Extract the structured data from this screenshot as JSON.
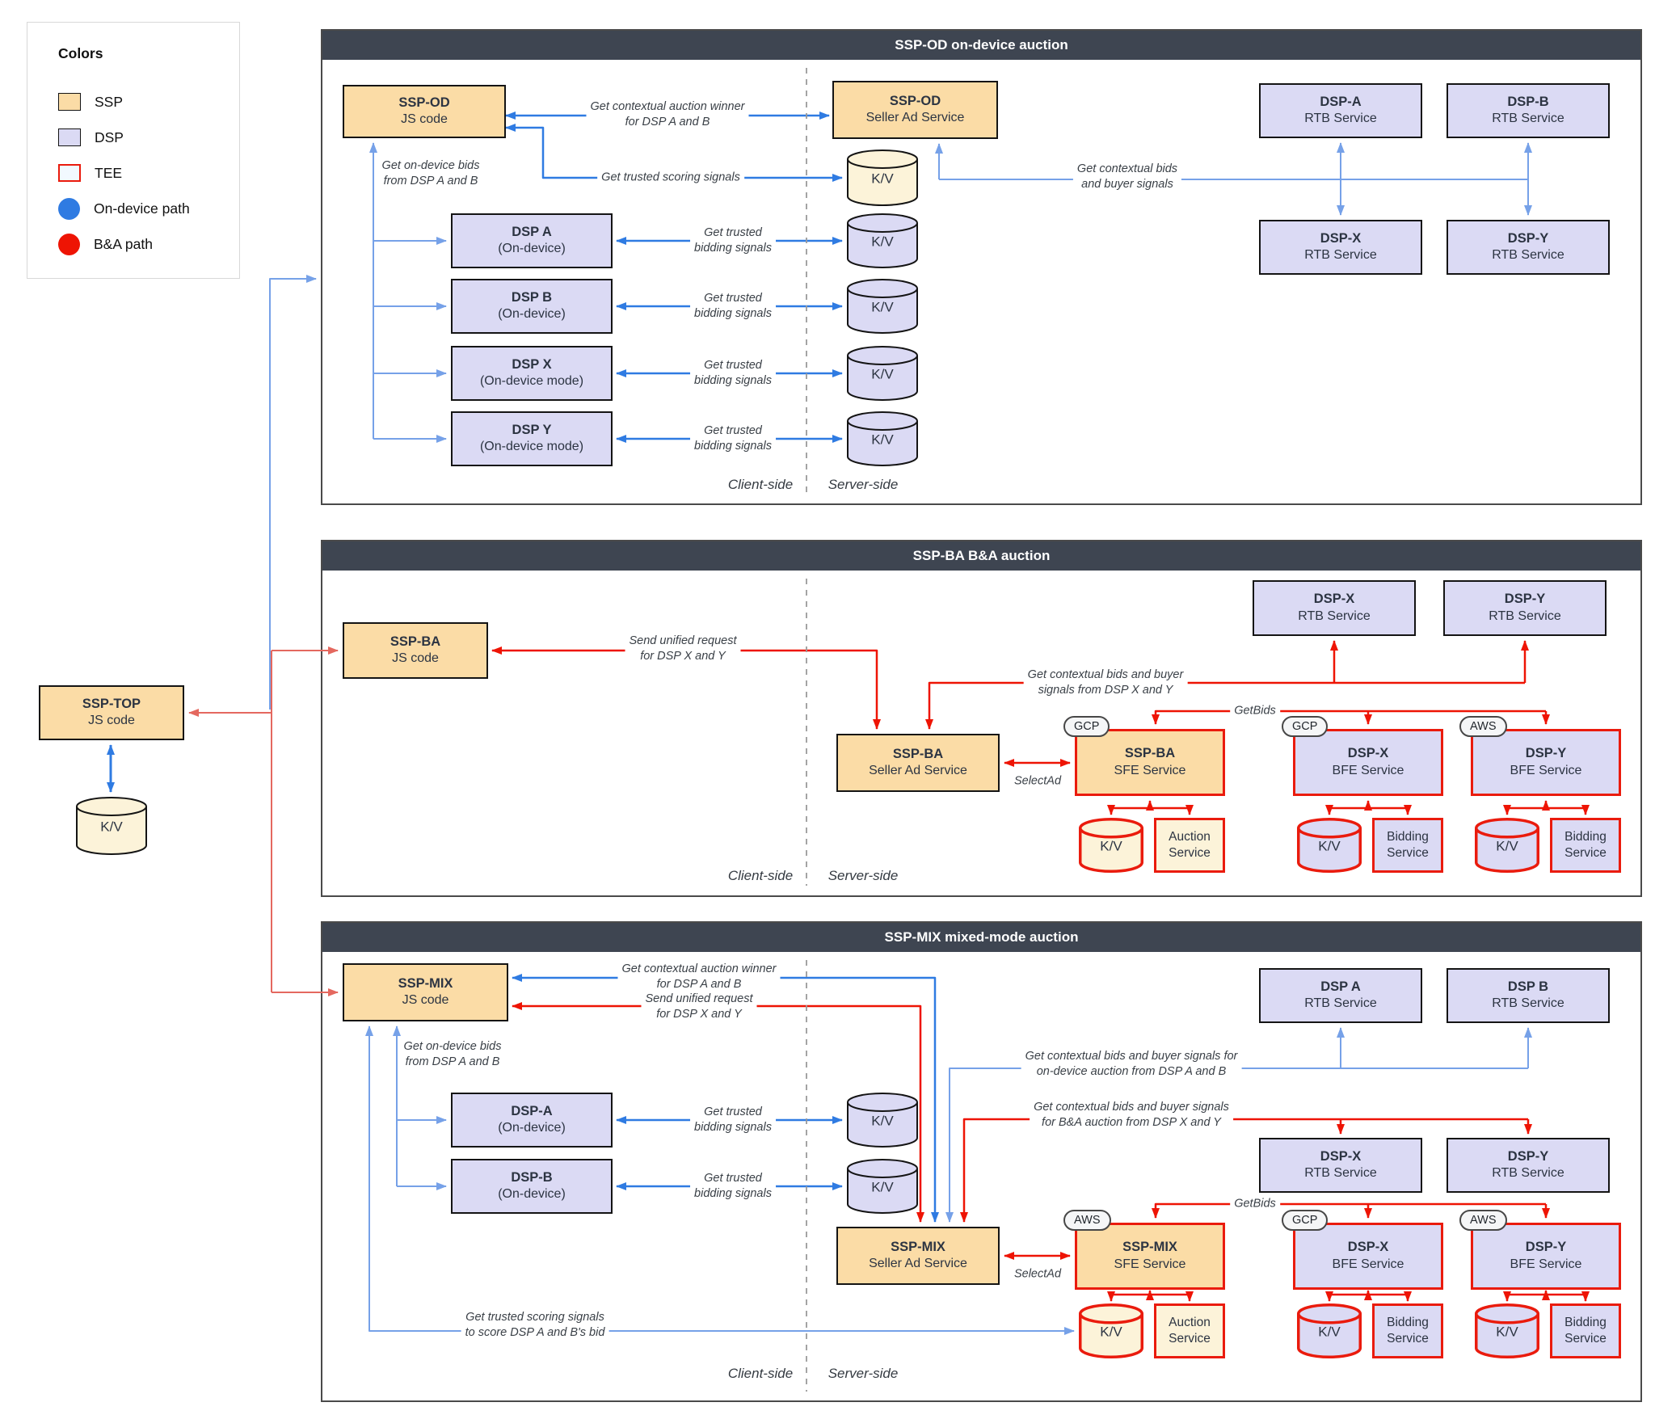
{
  "legend": {
    "title": "Colors",
    "items": [
      {
        "label": "SSP",
        "swatch": "ssp"
      },
      {
        "label": "DSP",
        "swatch": "dsp"
      },
      {
        "label": "TEE",
        "swatch": "tee"
      },
      {
        "label": "On-device path",
        "swatch": "blue-dot"
      },
      {
        "label": "B&A path",
        "swatch": "red-dot"
      }
    ]
  },
  "colors": {
    "ssp_fill": "#FBDCA6",
    "ssp_cream_fill": "#FCF3D9",
    "dsp_fill": "#DBDAF4",
    "tee_red": "#EA1B0D",
    "on_device_blue": "#2F7BE2",
    "on_device_blue_light": "#76A1E8",
    "ba_red": "#EE1404",
    "ba_red_light": "#E4685F",
    "header_bg": "#3E4551"
  },
  "sections": [
    {
      "title": "SSP-OD on-device auction",
      "client_label": "Client-side",
      "server_label": "Server-side"
    },
    {
      "title": "SSP-BA B&A auction",
      "client_label": "Client-side",
      "server_label": "Server-side"
    },
    {
      "title": "SSP-MIX mixed-mode auction",
      "client_label": "Client-side",
      "server_label": "Server-side"
    }
  ],
  "nodes": [
    {
      "id": "ssp-top-js",
      "title": "SSP-TOP",
      "subtitle": "JS code"
    },
    {
      "id": "ssp-top-kv",
      "title": "K/V"
    },
    {
      "id": "ssp-od-js",
      "title": "SSP-OD",
      "subtitle": "JS code"
    },
    {
      "id": "ssp-od-seller-ad-service",
      "title": "SSP-OD",
      "subtitle": "Seller Ad Service"
    },
    {
      "id": "ssp-od-kv",
      "title": "K/V"
    },
    {
      "id": "dsp-a-on-device",
      "title": "DSP A",
      "subtitle": "(On-device)"
    },
    {
      "id": "dsp-b-on-device",
      "title": "DSP B",
      "subtitle": "(On-device)"
    },
    {
      "id": "dsp-x-on-device-mode",
      "title": "DSP X",
      "subtitle": "(On-device mode)"
    },
    {
      "id": "dsp-a-kv",
      "title": "K/V"
    },
    {
      "id": "dsp-y-on-device-mode",
      "title": "DSP Y",
      "subtitle": "(On-device mode)"
    },
    {
      "id": "dsp-b-kv",
      "title": "K/V"
    },
    {
      "id": "dsp-x-kv",
      "title": "K/V"
    },
    {
      "id": "dsp-y-kv",
      "title": "K/V"
    },
    {
      "id": "dsp-a-rtb-1",
      "title": "DSP-A",
      "subtitle": "RTB Service"
    },
    {
      "id": "dsp-b-rtb-1",
      "title": "DSP-B",
      "subtitle": "RTB Service"
    },
    {
      "id": "dsp-x-rtb-1",
      "title": "DSP-X",
      "subtitle": "RTB Service"
    },
    {
      "id": "dsp-y-rtb-1",
      "title": "DSP-Y",
      "subtitle": "RTB Service"
    },
    {
      "id": "ssp-ba-js",
      "title": "SSP-BA",
      "subtitle": "JS code"
    },
    {
      "id": "dsp-x-rtb-2",
      "title": "DSP-X",
      "subtitle": "RTB Service"
    },
    {
      "id": "dsp-y-rtb-2",
      "title": "DSP-Y",
      "subtitle": "RTB Service"
    },
    {
      "id": "ssp-ba-seller-ad-service",
      "title": "SSP-BA",
      "subtitle": "Seller Ad Service"
    },
    {
      "id": "ssp-ba-sfe",
      "title": "SSP-BA",
      "subtitle": "SFE Service",
      "badge": "GCP"
    },
    {
      "id": "dsp-x-bfe-2",
      "title": "DSP-X",
      "subtitle": "BFE Service",
      "badge": "GCP"
    },
    {
      "id": "dsp-y-bfe-2",
      "title": "DSP-Y",
      "subtitle": "BFE Service",
      "badge": "AWS"
    },
    {
      "id": "ssp-ba-sfe-kv",
      "title": "K/V"
    },
    {
      "id": "ssp-ba-auction-service",
      "title": "Auction",
      "subtitle": "Service"
    },
    {
      "id": "dsp-x-bfe-kv-2",
      "title": "K/V"
    },
    {
      "id": "dsp-x-bidding-service-2",
      "title": "Bidding",
      "subtitle": "Service"
    },
    {
      "id": "dsp-y-bfe-kv-2",
      "title": "K/V"
    },
    {
      "id": "dsp-y-bidding-service-2",
      "title": "Bidding",
      "subtitle": "Service"
    },
    {
      "id": "ssp-mix-js",
      "title": "SSP-MIX",
      "subtitle": "JS code"
    },
    {
      "id": "dsp-a-on-device-3",
      "title": "DSP-A",
      "subtitle": "(On-device)"
    },
    {
      "id": "dsp-b-on-device-3",
      "title": "DSP-B",
      "subtitle": "(On-device)"
    },
    {
      "id": "dsp-a-kv-3",
      "title": "K/V"
    },
    {
      "id": "dsp-b-kv-3",
      "title": "K/V"
    },
    {
      "id": "dsp-a-rtb-3",
      "title": "DSP A",
      "subtitle": "RTB Service"
    },
    {
      "id": "dsp-b-rtb-3",
      "title": "DSP B",
      "subtitle": "RTB Service"
    },
    {
      "id": "dsp-x-rtb-3",
      "title": "DSP-X",
      "subtitle": "RTB Service"
    },
    {
      "id": "dsp-y-rtb-3",
      "title": "DSP-Y",
      "subtitle": "RTB Service"
    },
    {
      "id": "ssp-mix-seller-ad-service",
      "title": "SSP-MIX",
      "subtitle": "Seller Ad Service"
    },
    {
      "id": "ssp-mix-sfe",
      "title": "SSP-MIX",
      "subtitle": "SFE Service",
      "badge": "AWS"
    },
    {
      "id": "dsp-x-bfe-3",
      "title": "DSP-X",
      "subtitle": "BFE Service",
      "badge": "GCP"
    },
    {
      "id": "dsp-y-bfe-3",
      "title": "DSP-Y",
      "subtitle": "BFE Service",
      "badge": "AWS"
    },
    {
      "id": "ssp-mix-sfe-kv",
      "title": "K/V"
    },
    {
      "id": "ssp-mix-auction-service",
      "title": "Auction",
      "subtitle": "Service"
    },
    {
      "id": "dsp-x-bfe-kv-3",
      "title": "K/V"
    },
    {
      "id": "dsp-x-bidding-service-3",
      "title": "Bidding",
      "subtitle": "Service"
    },
    {
      "id": "dsp-y-bfe-kv-3",
      "title": "K/V"
    },
    {
      "id": "dsp-y-bidding-service-3",
      "title": "Bidding",
      "subtitle": "Service"
    }
  ],
  "edge_labels": [
    {
      "id": "winner-1",
      "lines": [
        "Get contextual auction winner",
        "for DSP A and B"
      ]
    },
    {
      "id": "scoring-1",
      "lines": [
        "Get trusted scoring signals"
      ]
    },
    {
      "id": "od-bids-1",
      "lines": [
        "Get on-device bids",
        "from DSP A and B"
      ]
    },
    {
      "id": "bidding-1a",
      "lines": [
        "Get trusted",
        "bidding signals"
      ]
    },
    {
      "id": "bidding-1b",
      "lines": [
        "Get trusted",
        "bidding signals"
      ]
    },
    {
      "id": "bidding-1x",
      "lines": [
        "Get trusted",
        "bidding signals"
      ]
    },
    {
      "id": "bidding-1y",
      "lines": [
        "Get trusted",
        "bidding signals"
      ]
    },
    {
      "id": "contextual-1",
      "lines": [
        "Get contextual bids",
        "and buyer signals"
      ]
    },
    {
      "id": "unified-2",
      "lines": [
        "Send unified request",
        "for DSP X and Y"
      ]
    },
    {
      "id": "contextual-2",
      "lines": [
        "Get contextual bids and buyer",
        "signals from DSP X and Y"
      ]
    },
    {
      "id": "getbids-2",
      "lines": [
        "GetBids"
      ]
    },
    {
      "id": "selectad-2",
      "lines": [
        "SelectAd"
      ]
    },
    {
      "id": "winner-3",
      "lines": [
        "Get contextual auction winner",
        "for DSP A and B"
      ]
    },
    {
      "id": "unified-3",
      "lines": [
        "Send unified request",
        "for DSP X and Y"
      ]
    },
    {
      "id": "od-bids-3",
      "lines": [
        "Get on-device bids",
        "from DSP A and B"
      ]
    },
    {
      "id": "bidding-3a",
      "lines": [
        "Get trusted",
        "bidding signals"
      ]
    },
    {
      "id": "bidding-3b",
      "lines": [
        "Get trusted",
        "bidding signals"
      ]
    },
    {
      "id": "contextual-od-3",
      "lines": [
        "Get contextual bids and buyer signals for",
        "on-device auction from DSP A and B"
      ]
    },
    {
      "id": "contextual-ba-3",
      "lines": [
        "Get contextual bids and buyer signals",
        "for B&A auction from DSP X and Y"
      ]
    },
    {
      "id": "getbids-3",
      "lines": [
        "GetBids"
      ]
    },
    {
      "id": "selectad-3",
      "lines": [
        "SelectAd"
      ]
    },
    {
      "id": "scoring-3",
      "lines": [
        "Get trusted scoring signals",
        "to score DSP A and B's bid"
      ]
    }
  ]
}
